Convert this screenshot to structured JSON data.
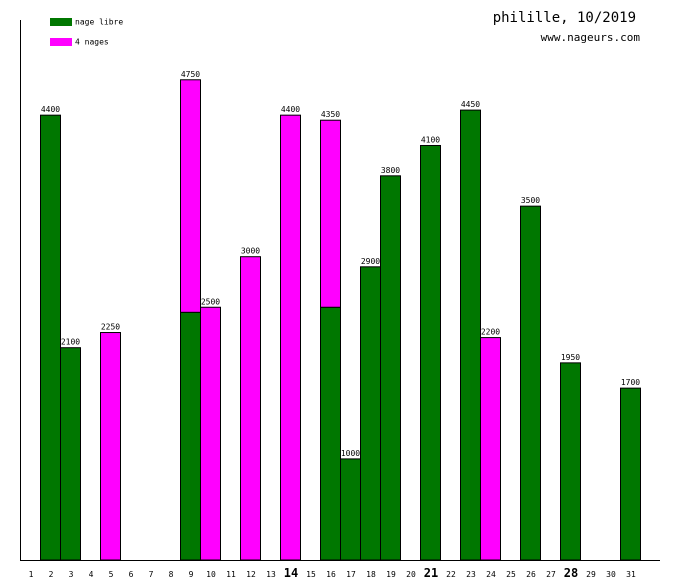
{
  "chart_data": {
    "type": "stacked_bar",
    "title": "philille, 10/2019",
    "subtitle": "www.nageurs.com",
    "categories": [
      "1",
      "2",
      "3",
      "4",
      "5",
      "6",
      "7",
      "8",
      "9",
      "10",
      "11",
      "12",
      "13",
      "14",
      "15",
      "16",
      "17",
      "18",
      "19",
      "20",
      "21",
      "22",
      "23",
      "24",
      "25",
      "26",
      "27",
      "28",
      "29",
      "30",
      "31"
    ],
    "series": [
      {
        "name": "nage libre",
        "color": "#007700",
        "values": [
          null,
          4400,
          2100,
          null,
          null,
          null,
          null,
          null,
          2450,
          null,
          null,
          null,
          null,
          null,
          null,
          2500,
          1000,
          2900,
          3800,
          null,
          4100,
          null,
          4450,
          null,
          null,
          3500,
          null,
          1950,
          null,
          null,
          1700
        ]
      },
      {
        "name": "4 nages",
        "color": "#ff00ff",
        "values": [
          null,
          null,
          null,
          null,
          2250,
          null,
          null,
          null,
          2300,
          2500,
          null,
          3000,
          null,
          4400,
          null,
          1850,
          null,
          null,
          null,
          null,
          null,
          null,
          null,
          2200,
          null,
          null,
          null,
          null,
          null,
          null,
          null
        ]
      }
    ],
    "totals": [
      null,
      4400,
      2100,
      null,
      2250,
      null,
      null,
      null,
      4750,
      2500,
      null,
      3000,
      null,
      4400,
      null,
      4350,
      1000,
      2900,
      3800,
      null,
      4100,
      null,
      4450,
      2200,
      null,
      3500,
      null,
      1950,
      null,
      null,
      1700
    ],
    "ylim": [
      0,
      5000
    ],
    "bold_categories": [
      13,
      20,
      27
    ],
    "legend": "top-left"
  }
}
